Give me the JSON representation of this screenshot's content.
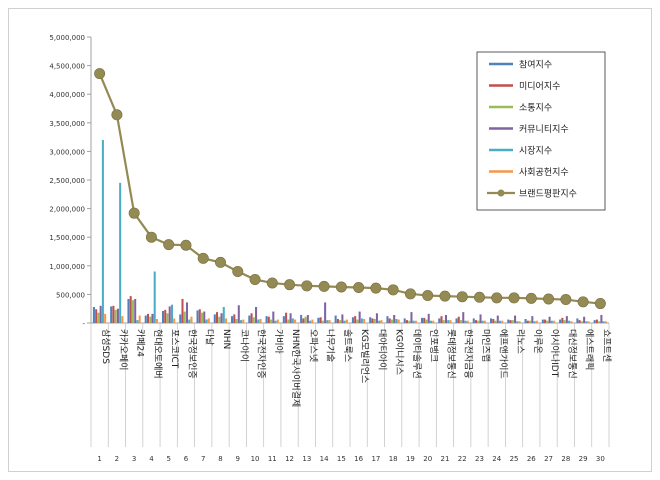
{
  "chart_data": {
    "type": "bar",
    "title": "",
    "xlabel": "",
    "ylabel": "",
    "ylim": [
      0,
      5000000
    ],
    "yticks": [
      0,
      500000,
      1000000,
      1500000,
      2000000,
      2500000,
      3000000,
      3500000,
      4000000,
      4500000,
      5000000
    ],
    "ytick_labels": [
      "-",
      "500,000",
      "1,000,000",
      "1,500,000",
      "2,000,000",
      "2,500,000",
      "3,000,000",
      "3,500,000",
      "4,000,000",
      "4,500,000",
      "5,000,000"
    ],
    "grid": false,
    "legend_position": "top-right",
    "categories": [
      "삼성SDS",
      "카카오페이",
      "카페24",
      "현대오토에버",
      "포스코ICT",
      "한국정보인증",
      "다날",
      "NHN",
      "코나아이",
      "한국전자인증",
      "가비아",
      "NHN한국사이버결제",
      "오파스넷",
      "나무기술",
      "솔트룩스",
      "KG모빌리언스",
      "대아티아이",
      "KG이니시스",
      "데이타솔루션",
      "인포뱅크",
      "롯데정보통신",
      "한국전자금융",
      "마인즈랩",
      "에프앤가이드",
      "리노스",
      "이루온",
      "아시아나IDT",
      "대신정보통신",
      "에스트래픽",
      "쇼프트센"
    ],
    "rank_labels": [
      "1",
      "2",
      "3",
      "4",
      "5",
      "6",
      "7",
      "8",
      "9",
      "10",
      "11",
      "12",
      "13",
      "14",
      "15",
      "16",
      "17",
      "18",
      "19",
      "20",
      "21",
      "22",
      "23",
      "24",
      "25",
      "26",
      "27",
      "28",
      "29",
      "30"
    ],
    "series": [
      {
        "name": "참여지수",
        "type": "bar",
        "color": "#4f81bd",
        "values": [
          280000,
          290000,
          420000,
          130000,
          210000,
          150000,
          220000,
          150000,
          120000,
          130000,
          120000,
          120000,
          140000,
          90000,
          130000,
          100000,
          100000,
          120000,
          80000,
          90000,
          80000,
          80000,
          80000,
          80000,
          60000,
          70000,
          60000,
          60000,
          80000,
          50000
        ]
      },
      {
        "name": "미디어지수",
        "type": "bar",
        "color": "#c0504d",
        "values": [
          240000,
          300000,
          470000,
          160000,
          230000,
          420000,
          240000,
          190000,
          150000,
          170000,
          110000,
          180000,
          80000,
          100000,
          70000,
          120000,
          80000,
          80000,
          50000,
          90000,
          120000,
          110000,
          50000,
          70000,
          50000,
          40000,
          60000,
          90000,
          50000,
          60000
        ]
      },
      {
        "name": "소통지수",
        "type": "bar",
        "color": "#9bbb59",
        "values": [
          180000,
          230000,
          400000,
          110000,
          170000,
          200000,
          180000,
          110000,
          70000,
          100000,
          60000,
          60000,
          110000,
          40000,
          50000,
          60000,
          70000,
          60000,
          40000,
          60000,
          50000,
          50000,
          40000,
          40000,
          50000,
          40000,
          40000,
          50000,
          30000,
          30000
        ]
      },
      {
        "name": "커뮤니티지수",
        "type": "bar",
        "color": "#8064a2",
        "values": [
          300000,
          250000,
          420000,
          160000,
          290000,
          360000,
          200000,
          170000,
          310000,
          280000,
          200000,
          170000,
          140000,
          360000,
          150000,
          200000,
          170000,
          140000,
          190000,
          160000,
          140000,
          190000,
          150000,
          130000,
          130000,
          120000,
          110000,
          120000,
          110000,
          140000
        ]
      },
      {
        "name": "시장지수",
        "type": "bar",
        "color": "#4bacc6",
        "values": [
          3200000,
          2450000,
          50000,
          900000,
          320000,
          60000,
          60000,
          280000,
          50000,
          60000,
          40000,
          80000,
          40000,
          50000,
          40000,
          80000,
          40000,
          70000,
          40000,
          40000,
          50000,
          40000,
          40000,
          40000,
          30000,
          30000,
          40000,
          40000,
          30000,
          30000
        ]
      },
      {
        "name": "사회공헌지수",
        "type": "bar",
        "color": "#f79646",
        "values": [
          160000,
          120000,
          130000,
          70000,
          80000,
          110000,
          80000,
          80000,
          60000,
          70000,
          60000,
          60000,
          60000,
          50000,
          60000,
          70000,
          50000,
          60000,
          40000,
          40000,
          50000,
          40000,
          40000,
          40000,
          30000,
          40000,
          40000,
          30000,
          30000,
          30000
        ]
      },
      {
        "name": "브랜드평판지수",
        "type": "line",
        "color": "#948a54",
        "values": [
          4360000,
          3640000,
          1920000,
          1500000,
          1370000,
          1360000,
          1130000,
          1060000,
          900000,
          760000,
          700000,
          670000,
          650000,
          640000,
          630000,
          620000,
          610000,
          580000,
          510000,
          480000,
          470000,
          460000,
          450000,
          440000,
          440000,
          430000,
          420000,
          410000,
          370000,
          340000
        ]
      }
    ]
  }
}
